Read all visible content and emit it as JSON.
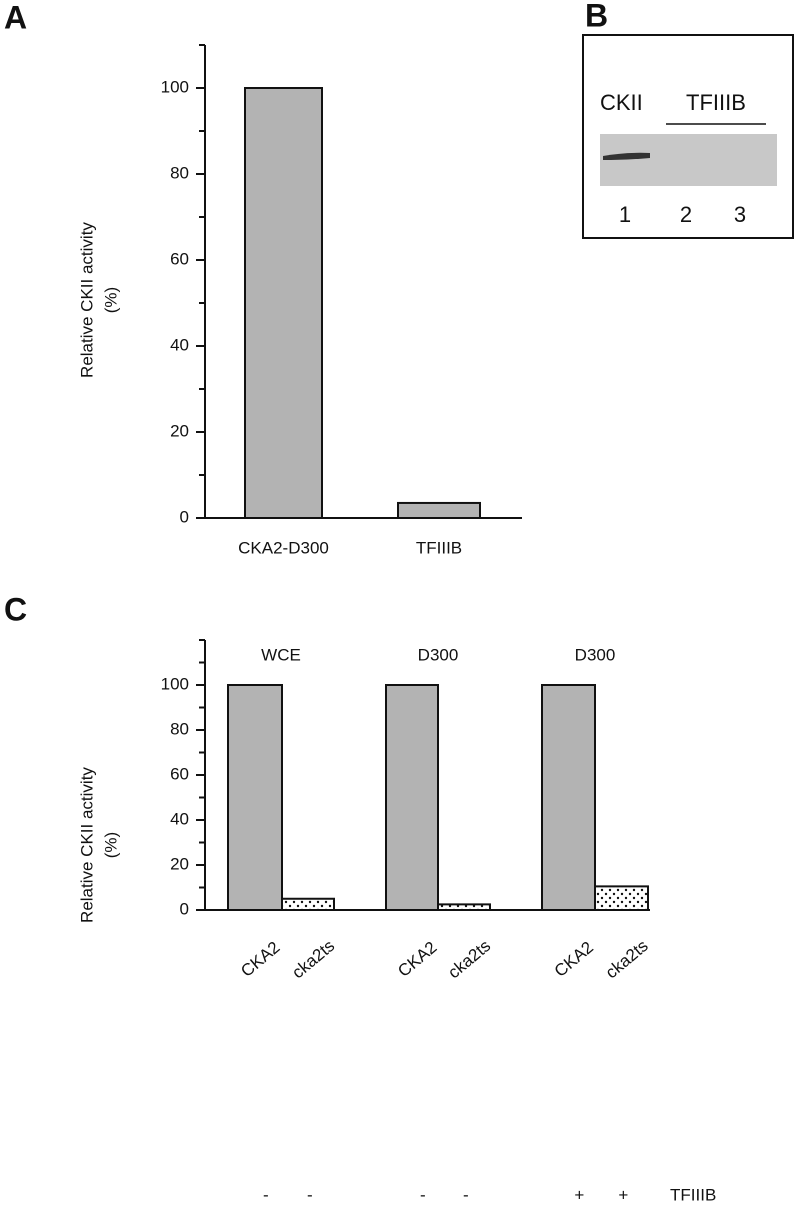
{
  "panel_labels": [
    "A",
    "B",
    "C"
  ],
  "blot": {
    "lane_header": [
      "CKII",
      "TFIIIB"
    ],
    "lanes": [
      "1",
      "2",
      "3"
    ]
  },
  "chart_data": [
    {
      "type": "bar",
      "ylabel": [
        "Relative CKII activity",
        "(%)"
      ],
      "categories": [
        "CKA2-D300",
        "TFIIIB"
      ],
      "values": [
        100,
        3.5
      ],
      "bar_fills": [
        "solid",
        "solid"
      ],
      "color": "#b3b3b3",
      "ylim": [
        0,
        110
      ],
      "yticks": [
        0,
        20,
        40,
        60,
        80,
        100
      ],
      "minor_yticks": [
        10,
        30,
        50,
        70,
        90,
        110
      ]
    },
    {
      "type": "bar",
      "ylabel": [
        "Relative CKII activity",
        "(%)"
      ],
      "groups": [
        "WCE",
        "D300",
        "D300"
      ],
      "categories": [
        "CKA2",
        "cka2ts",
        "CKA2",
        "cka2ts",
        "CKA2",
        "cka2ts"
      ],
      "values": [
        100,
        5,
        100,
        2.5,
        100,
        10.5
      ],
      "bar_fills": [
        "solid",
        "dots",
        "solid",
        "dots",
        "solid",
        "dots"
      ],
      "color": "#b3b3b3",
      "treatment": {
        "label": "TFIIIB",
        "values": [
          "-",
          "-",
          "-",
          "-",
          "+",
          "+"
        ]
      },
      "ylim": [
        0,
        120
      ],
      "yticks": [
        0,
        20,
        40,
        60,
        80,
        100
      ],
      "minor_yticks": [
        10,
        30,
        50,
        70,
        90,
        110,
        120
      ]
    }
  ]
}
